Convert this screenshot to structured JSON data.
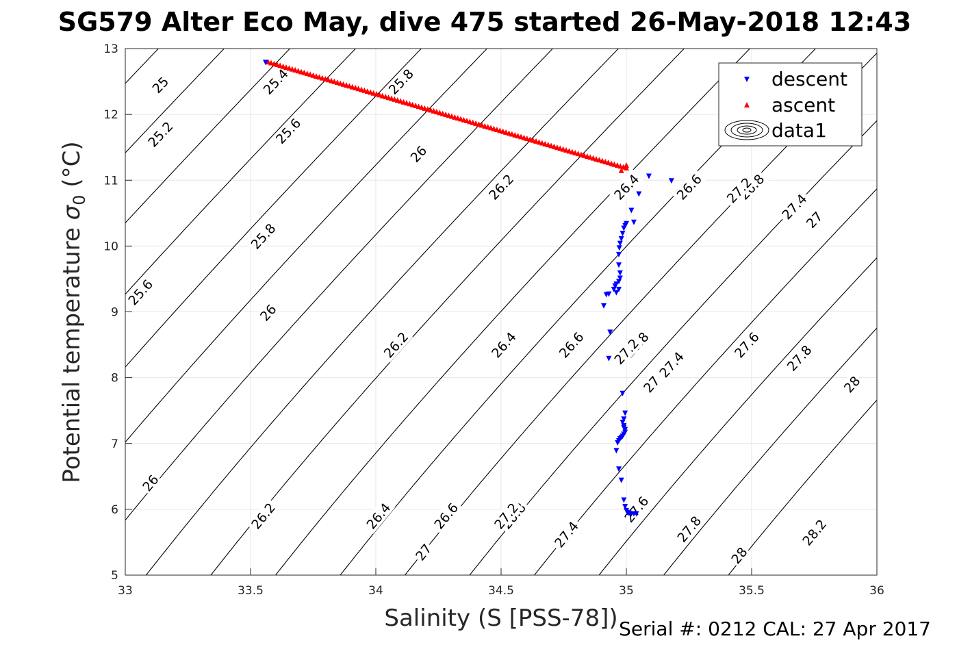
{
  "chart_data": {
    "type": "scatter",
    "title": "SG579 Alter Eco May, dive 475 started 26-May-2018 12:43",
    "xlabel": "Salinity (S [PSS-78])",
    "ylabel_main": "Potential temperature ",
    "ylabel_sigma": "σ",
    "ylabel_sub": "0",
    "ylabel_unit": " (°C)",
    "xlim": [
      33,
      36
    ],
    "ylim": [
      5,
      13
    ],
    "xticks": [
      33,
      33.5,
      34,
      34.5,
      35,
      35.5,
      36
    ],
    "xtick_labels": [
      "33",
      "33.5",
      "34",
      "34.5",
      "35",
      "35.5",
      "36"
    ],
    "yticks": [
      5,
      6,
      7,
      8,
      9,
      10,
      11,
      12,
      13
    ],
    "ytick_labels": [
      "5",
      "6",
      "7",
      "8",
      "9",
      "10",
      "11",
      "12",
      "13"
    ],
    "grid": true,
    "legend_position": "top-right",
    "series": [
      {
        "name": "descent",
        "color": "#0000ff",
        "marker": "triangle-down",
        "x": [
          33.56,
          35.09,
          35.18,
          35.05,
          35.02,
          35.03,
          35.0,
          34.995,
          34.99,
          34.985,
          34.98,
          34.975,
          34.972,
          34.97,
          34.97,
          34.975,
          34.975,
          34.97,
          34.96,
          34.955,
          34.97,
          34.96,
          34.95,
          34.93,
          34.92,
          34.91,
          34.935,
          34.93,
          34.985,
          34.995,
          34.99,
          34.985,
          34.99,
          34.99,
          34.995,
          34.995,
          34.99,
          34.985,
          34.98,
          34.975,
          34.97,
          34.965,
          34.96,
          34.97,
          34.98,
          34.99,
          34.995,
          35.0,
          35.005,
          35.01,
          35.02,
          35.03,
          35.04
        ],
        "y": [
          12.8,
          11.07,
          11.0,
          10.8,
          10.55,
          10.37,
          10.35,
          10.32,
          10.28,
          10.2,
          10.12,
          10.05,
          9.98,
          9.88,
          9.72,
          9.6,
          9.52,
          9.47,
          9.43,
          9.4,
          9.35,
          9.3,
          9.35,
          9.28,
          9.27,
          9.1,
          8.7,
          8.3,
          7.77,
          7.47,
          7.38,
          7.33,
          7.28,
          7.25,
          7.22,
          7.18,
          7.15,
          7.12,
          7.1,
          7.08,
          7.05,
          7.02,
          6.9,
          6.62,
          6.45,
          6.15,
          6.05,
          5.99,
          5.96,
          5.95,
          5.94,
          5.94,
          5.94
        ]
      },
      {
        "name": "ascent",
        "color": "#ff0000",
        "marker": "triangle-up",
        "x_start": 33.57,
        "y_start": 12.79,
        "x_end": 35.0,
        "y_end": 11.18,
        "n_points": 120,
        "extra_x": [
          34.98,
          35.0
        ],
        "extra_y": [
          11.14,
          11.22
        ]
      },
      {
        "name": "data1",
        "color": "#000000",
        "type": "contour",
        "levels": [
          25,
          25.2,
          25.4,
          25.6,
          25.8,
          26,
          26.2,
          26.4,
          26.6,
          26.8,
          27,
          27.2,
          27.4,
          27.6,
          27.8,
          28,
          28.2
        ],
        "labels": [
          {
            "text": "25",
            "s": 33.14,
            "t": 12.45
          },
          {
            "text": "25.2",
            "s": 33.14,
            "t": 11.7
          },
          {
            "text": "25.4",
            "s": 33.6,
            "t": 12.5
          },
          {
            "text": "25.6",
            "s": 33.06,
            "t": 9.3
          },
          {
            "text": "25.6",
            "s": 33.65,
            "t": 11.75
          },
          {
            "text": "25.8",
            "s": 33.55,
            "t": 10.15
          },
          {
            "text": "25.8",
            "s": 34.1,
            "t": 12.5
          },
          {
            "text": "26",
            "s": 33.1,
            "t": 6.4
          },
          {
            "text": "26",
            "s": 33.57,
            "t": 8.99
          },
          {
            "text": "26",
            "s": 34.17,
            "t": 11.4
          },
          {
            "text": "26.2",
            "s": 33.55,
            "t": 5.9
          },
          {
            "text": "26.2",
            "s": 34.08,
            "t": 8.5
          },
          {
            "text": "26.2",
            "s": 34.5,
            "t": 10.9
          },
          {
            "text": "26.4",
            "s": 34.01,
            "t": 5.9
          },
          {
            "text": "26.4",
            "s": 34.51,
            "t": 8.5
          },
          {
            "text": "26.4",
            "s": 35.0,
            "t": 10.9
          },
          {
            "text": "26.6",
            "s": 34.28,
            "t": 5.9
          },
          {
            "text": "26.6",
            "s": 34.78,
            "t": 8.5
          },
          {
            "text": "26.6",
            "s": 35.25,
            "t": 10.9
          },
          {
            "text": "26.8",
            "s": 34.55,
            "t": 5.9
          },
          {
            "text": "26.8",
            "s": 35.04,
            "t": 8.5
          },
          {
            "text": "26.8",
            "s": 35.5,
            "t": 10.9
          },
          {
            "text": "27",
            "s": 34.19,
            "t": 5.35
          },
          {
            "text": "27",
            "s": 35.1,
            "t": 7.9
          },
          {
            "text": "27",
            "s": 35.75,
            "t": 10.4
          },
          {
            "text": "27.2",
            "s": 34.52,
            "t": 5.9
          },
          {
            "text": "27.2",
            "s": 35.0,
            "t": 8.4
          },
          {
            "text": "27.2",
            "s": 35.45,
            "t": 10.85
          },
          {
            "text": "27.4",
            "s": 34.76,
            "t": 5.62
          },
          {
            "text": "27.4",
            "s": 35.18,
            "t": 8.2
          },
          {
            "text": "27.4",
            "s": 35.67,
            "t": 10.6
          },
          {
            "text": "27.6",
            "s": 35.04,
            "t": 6.0
          },
          {
            "text": "27.6",
            "s": 35.48,
            "t": 8.5
          },
          {
            "text": "27.8",
            "s": 35.25,
            "t": 5.7
          },
          {
            "text": "27.8",
            "s": 35.69,
            "t": 8.3
          },
          {
            "text": "28",
            "s": 35.45,
            "t": 5.3
          },
          {
            "text": "28",
            "s": 35.9,
            "t": 7.9
          },
          {
            "text": "28.2",
            "s": 35.75,
            "t": 5.65
          }
        ]
      }
    ],
    "footer": "Serial #: 0212  CAL: 27 Apr 2017"
  }
}
